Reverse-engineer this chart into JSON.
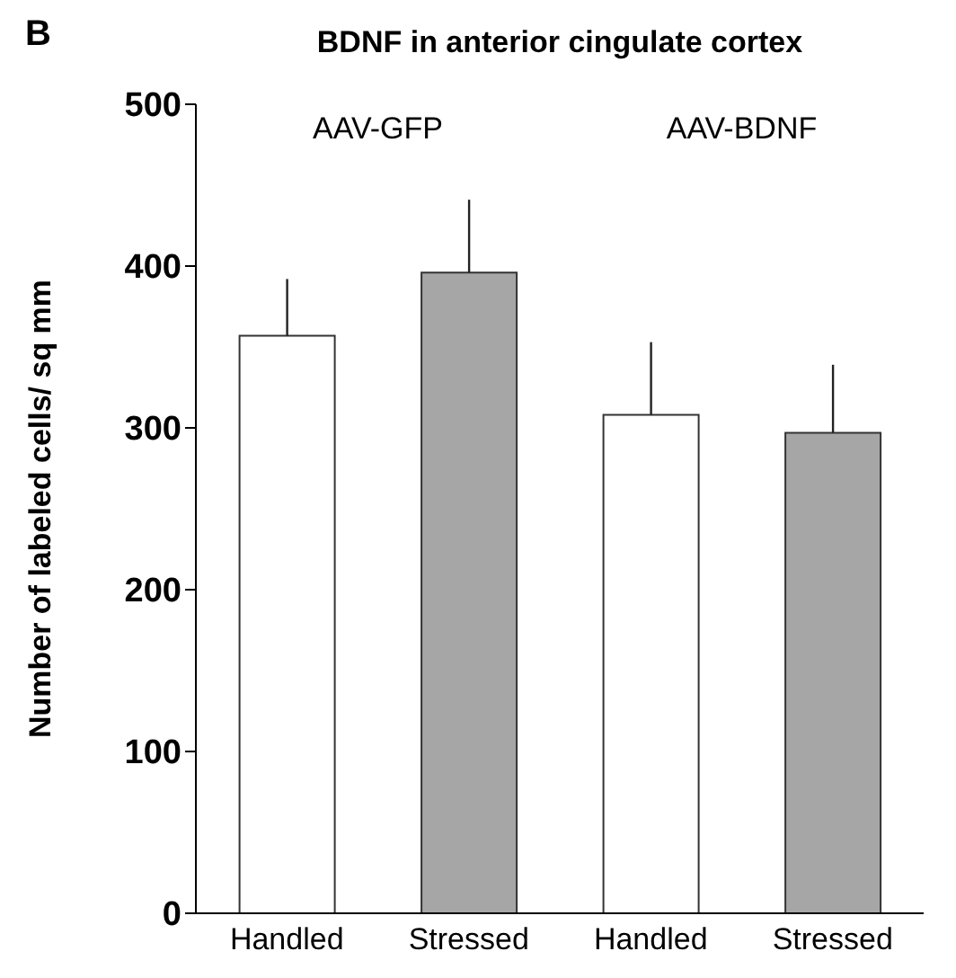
{
  "chart_data": {
    "type": "bar",
    "title": "BDNF in anterior cingulate cortex",
    "ylabel": "Number of labeled cells/ sq mm",
    "categories": [
      "Handled",
      "Stressed",
      "Handled",
      "Stressed"
    ],
    "values": [
      357,
      396,
      308,
      297
    ],
    "colors": [
      "#ffffff",
      "#a6a6a6",
      "#ffffff",
      "#a6a6a6"
    ],
    "errors": [
      [
        357,
        392
      ],
      [
        396,
        441
      ],
      [
        308,
        353
      ],
      [
        297,
        339
      ]
    ],
    "ylim": [
      0,
      500
    ],
    "yticks": [
      0,
      100,
      200,
      300,
      400,
      500
    ],
    "grid": false,
    "annotations": [
      "B",
      "AAV-GFP",
      "AAV-BDNF"
    ]
  }
}
